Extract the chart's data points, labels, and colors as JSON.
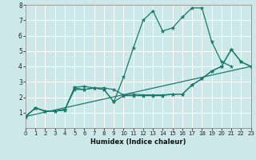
{
  "xlabel": "Humidex (Indice chaleur)",
  "ylabel": "",
  "bg_color": "#cce8e8",
  "grid_color": "#ffffff",
  "line_color": "#1a7a6e",
  "xlim": [
    0,
    23
  ],
  "ylim": [
    0,
    8
  ],
  "xticks": [
    0,
    1,
    2,
    3,
    4,
    5,
    6,
    7,
    8,
    9,
    10,
    11,
    12,
    13,
    14,
    15,
    16,
    17,
    18,
    19,
    20,
    21,
    22,
    23
  ],
  "yticks": [
    1,
    2,
    3,
    4,
    5,
    6,
    7,
    8
  ],
  "lines": [
    {
      "x": [
        0,
        1,
        2,
        3,
        4,
        5,
        6,
        7,
        8,
        9,
        10,
        11,
        12,
        13,
        14,
        15,
        16,
        17,
        18,
        19,
        20,
        21,
        22,
        23
      ],
      "y": [
        0.75,
        1.3,
        1.1,
        1.1,
        1.15,
        2.65,
        2.7,
        2.6,
        2.5,
        1.7,
        3.3,
        5.2,
        7.0,
        7.6,
        6.3,
        6.5,
        7.2,
        7.8,
        7.8,
        5.6,
        4.3,
        4.0,
        null,
        null
      ],
      "markers": true
    },
    {
      "x": [
        0,
        1,
        2,
        3,
        4,
        5,
        6,
        7,
        8,
        9,
        10,
        11,
        12,
        13,
        14,
        15,
        16,
        17,
        18,
        19,
        20,
        21,
        22,
        23
      ],
      "y": [
        0.75,
        1.3,
        1.1,
        1.1,
        1.2,
        2.6,
        2.5,
        2.6,
        2.6,
        2.5,
        2.15,
        2.2,
        2.15,
        2.15,
        2.15,
        2.2,
        2.2,
        2.8,
        3.2,
        3.7,
        4.0,
        5.1,
        4.3,
        4.0
      ],
      "markers": true
    },
    {
      "x": [
        0,
        1,
        2,
        3,
        4,
        5,
        6,
        7,
        8,
        9,
        10,
        11,
        12,
        13,
        14,
        15,
        16,
        17,
        18,
        19,
        20,
        21,
        22,
        23
      ],
      "y": [
        0.75,
        1.3,
        1.1,
        1.1,
        1.2,
        2.5,
        2.5,
        2.6,
        2.5,
        1.7,
        2.1,
        2.1,
        2.1,
        2.1,
        2.1,
        2.2,
        2.2,
        2.8,
        3.2,
        3.7,
        4.0,
        5.1,
        4.3,
        4.0
      ],
      "markers": true
    },
    {
      "x": [
        0,
        23
      ],
      "y": [
        0.75,
        4.0
      ],
      "markers": false
    }
  ]
}
